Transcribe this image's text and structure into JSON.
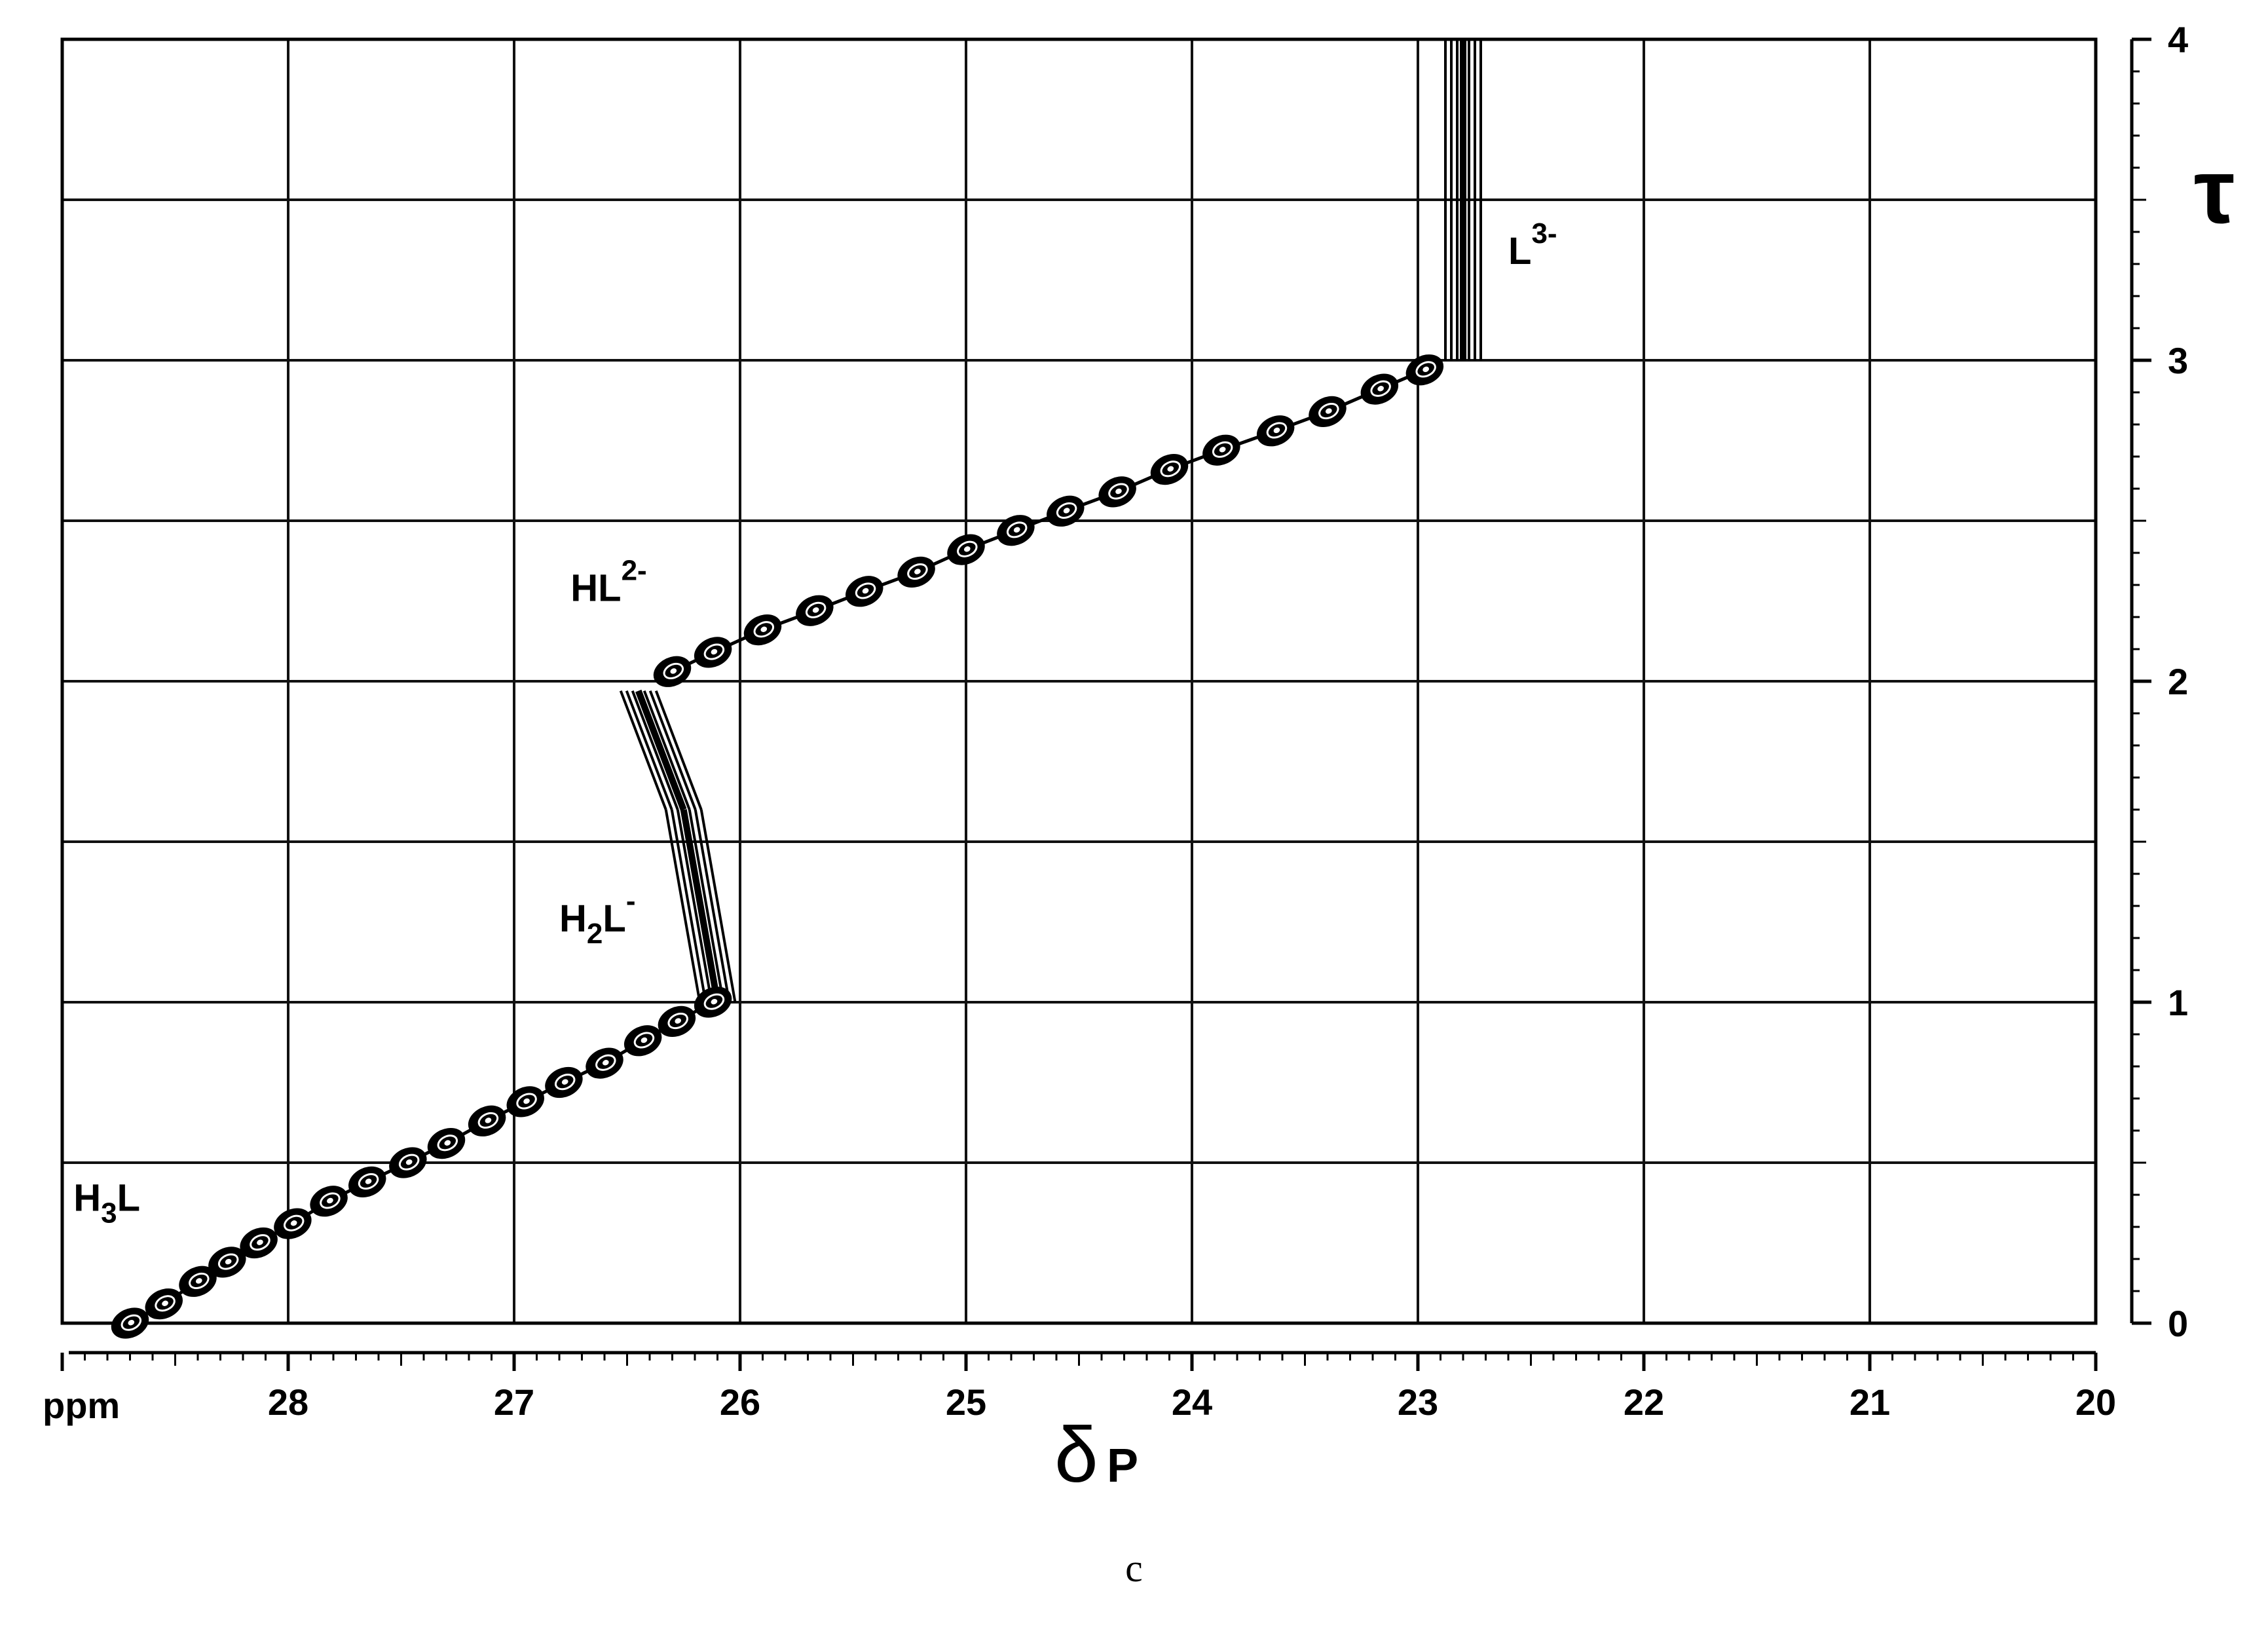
{
  "caption": "c",
  "chart_data": {
    "type": "scatter",
    "x_axis": {
      "unit_label": "ppm",
      "label_main": "δ",
      "label_sub": "P",
      "range": [
        29.0,
        20.0
      ],
      "ticks": [
        "28",
        "27",
        "26",
        "25",
        "24",
        "23",
        "22",
        "21",
        "20"
      ],
      "tick_values": [
        28,
        27,
        26,
        25,
        24,
        23,
        22,
        21,
        20
      ],
      "minor_step": 0.1
    },
    "y_axis": {
      "label": "τ",
      "range": [
        0,
        4
      ],
      "ticks": [
        "0",
        "1",
        "2",
        "3",
        "4"
      ],
      "tick_values": [
        0,
        1,
        2,
        3,
        4
      ],
      "minor_step": 0.1
    },
    "grid": true,
    "species_labels": [
      {
        "main": "H",
        "sub": "3",
        "tail": "L",
        "sup": "",
        "x": 28.95,
        "y": 0.35
      },
      {
        "main": "H",
        "sub": "2",
        "tail": "L",
        "sup": "-",
        "x": 26.8,
        "y": 1.22
      },
      {
        "main": "HL",
        "sub": "",
        "tail": "",
        "sup": "2-",
        "x": 26.75,
        "y": 2.25
      },
      {
        "main": "L",
        "sub": "",
        "tail": "",
        "sup": "3-",
        "x": 22.6,
        "y": 3.3
      }
    ],
    "points": [
      {
        "x": 28.7,
        "y": 0.0
      },
      {
        "x": 28.55,
        "y": 0.06
      },
      {
        "x": 28.4,
        "y": 0.13
      },
      {
        "x": 28.27,
        "y": 0.19
      },
      {
        "x": 28.13,
        "y": 0.25
      },
      {
        "x": 27.98,
        "y": 0.31
      },
      {
        "x": 27.82,
        "y": 0.38
      },
      {
        "x": 27.65,
        "y": 0.44
      },
      {
        "x": 27.47,
        "y": 0.5
      },
      {
        "x": 27.3,
        "y": 0.56
      },
      {
        "x": 27.12,
        "y": 0.63
      },
      {
        "x": 26.95,
        "y": 0.69
      },
      {
        "x": 26.78,
        "y": 0.75
      },
      {
        "x": 26.6,
        "y": 0.81
      },
      {
        "x": 26.43,
        "y": 0.88
      },
      {
        "x": 26.28,
        "y": 0.94
      },
      {
        "x": 26.12,
        "y": 1.0
      },
      {
        "x": 26.3,
        "y": 2.03
      },
      {
        "x": 26.12,
        "y": 2.09
      },
      {
        "x": 25.9,
        "y": 2.16
      },
      {
        "x": 25.67,
        "y": 2.22
      },
      {
        "x": 25.45,
        "y": 2.28
      },
      {
        "x": 25.22,
        "y": 2.34
      },
      {
        "x": 25.0,
        "y": 2.41
      },
      {
        "x": 24.78,
        "y": 2.47
      },
      {
        "x": 24.56,
        "y": 2.53
      },
      {
        "x": 24.33,
        "y": 2.59
      },
      {
        "x": 24.1,
        "y": 2.66
      },
      {
        "x": 23.87,
        "y": 2.72
      },
      {
        "x": 23.63,
        "y": 2.78
      },
      {
        "x": 23.4,
        "y": 2.84
      },
      {
        "x": 23.17,
        "y": 2.91
      },
      {
        "x": 22.97,
        "y": 2.97
      }
    ],
    "vertical_segments": [
      {
        "from": [
          26.1,
          1.0
        ],
        "to": [
          26.25,
          1.6
        ]
      },
      {
        "from": [
          26.25,
          1.6
        ],
        "to": [
          26.45,
          1.97
        ]
      },
      {
        "from": [
          22.8,
          3.0
        ],
        "to": [
          22.8,
          4.0
        ]
      }
    ]
  }
}
